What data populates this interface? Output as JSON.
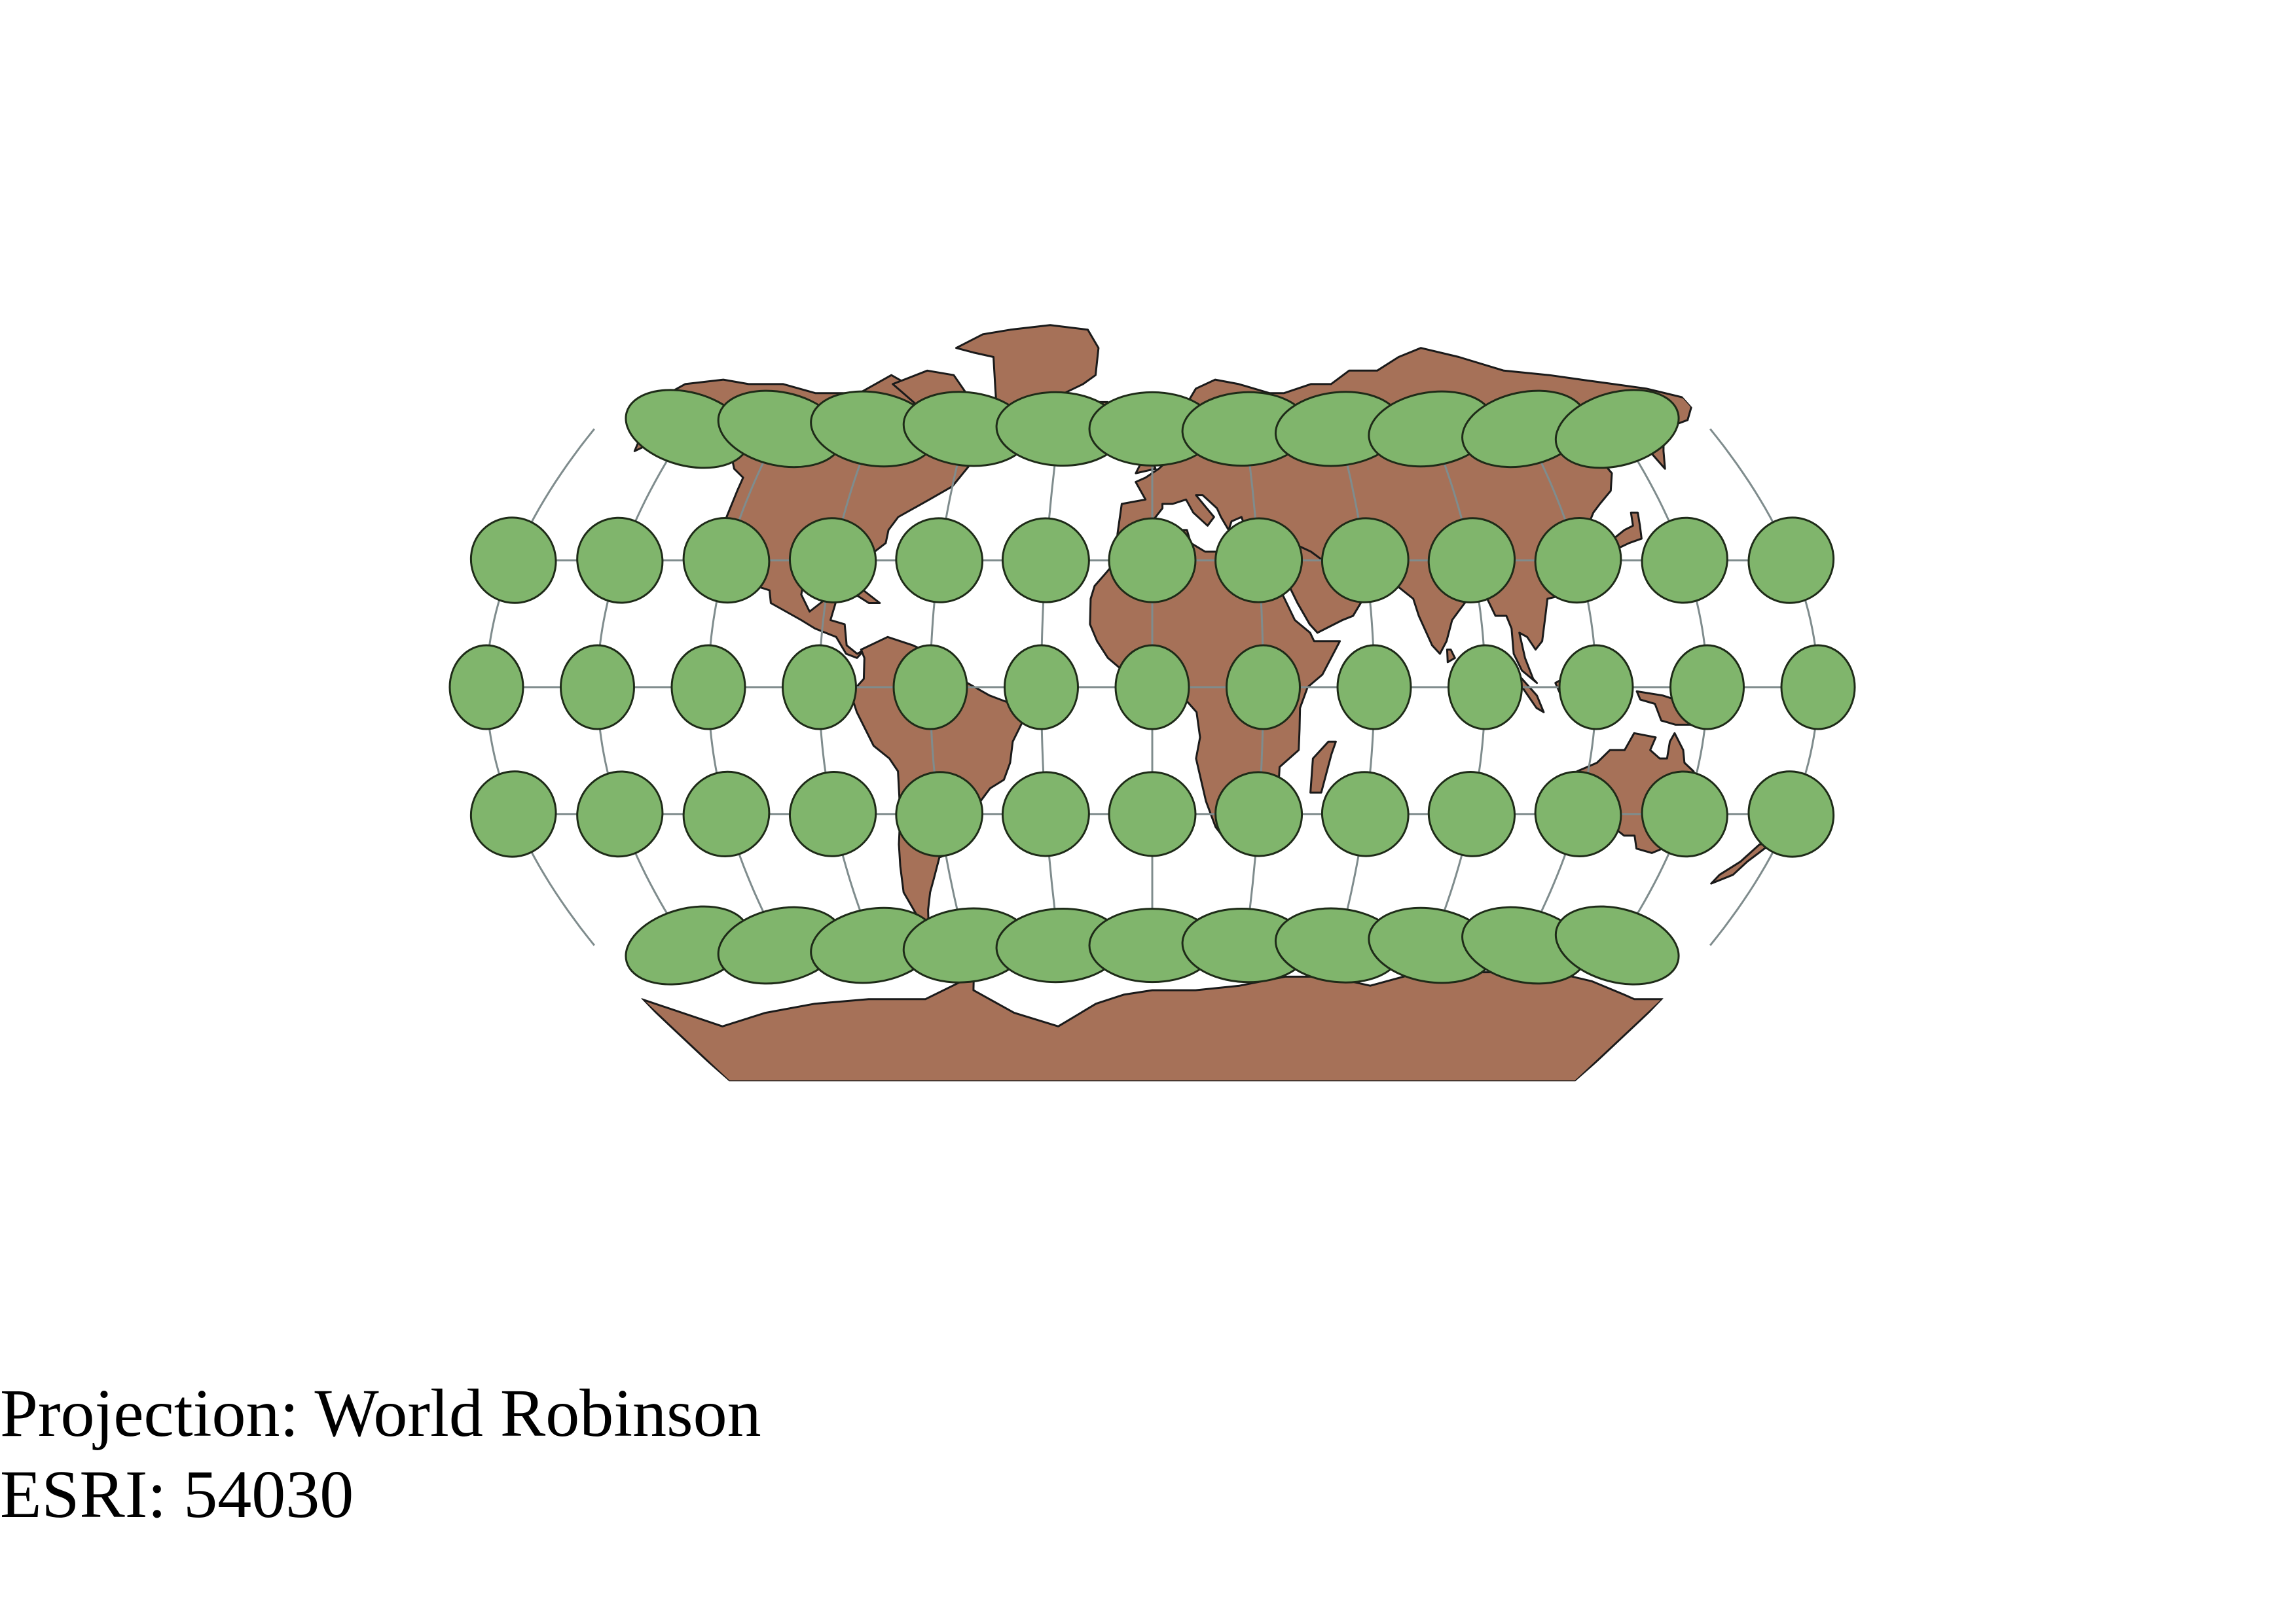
{
  "caption": {
    "projection_line": "Projection: World Robinson",
    "esri_line": "ESRI: 54030"
  },
  "map": {
    "projection": "World Robinson",
    "esri_code": "54030",
    "colors": {
      "land": "#a67158",
      "land_outline": "#1a1a1a",
      "ellipse_fill": "#80b56c",
      "ellipse_stroke": "#1e2b18",
      "graticule": "#7f8c8d",
      "background": "#ffffff"
    },
    "graticule": {
      "meridians_deg": [
        -150,
        -120,
        -90,
        -60,
        -30,
        0,
        30,
        60,
        90,
        120,
        150
      ],
      "parallels_deg": [
        60,
        30,
        0,
        -30,
        -60
      ]
    },
    "tissot_indicatrix": {
      "description_rows_lat": [
        60,
        30,
        0,
        -30,
        -60
      ],
      "lon_60": [
        -150,
        -120,
        -90,
        -60,
        -30,
        0,
        30,
        60,
        90,
        120,
        150
      ],
      "lon_30": [
        -180,
        -150,
        -120,
        -90,
        -60,
        -30,
        0,
        30,
        60,
        90,
        120,
        150,
        180
      ],
      "lon_0": [
        -180,
        -150,
        -120,
        -90,
        -60,
        -30,
        0,
        30,
        60,
        90,
        120,
        150,
        180
      ]
    }
  }
}
